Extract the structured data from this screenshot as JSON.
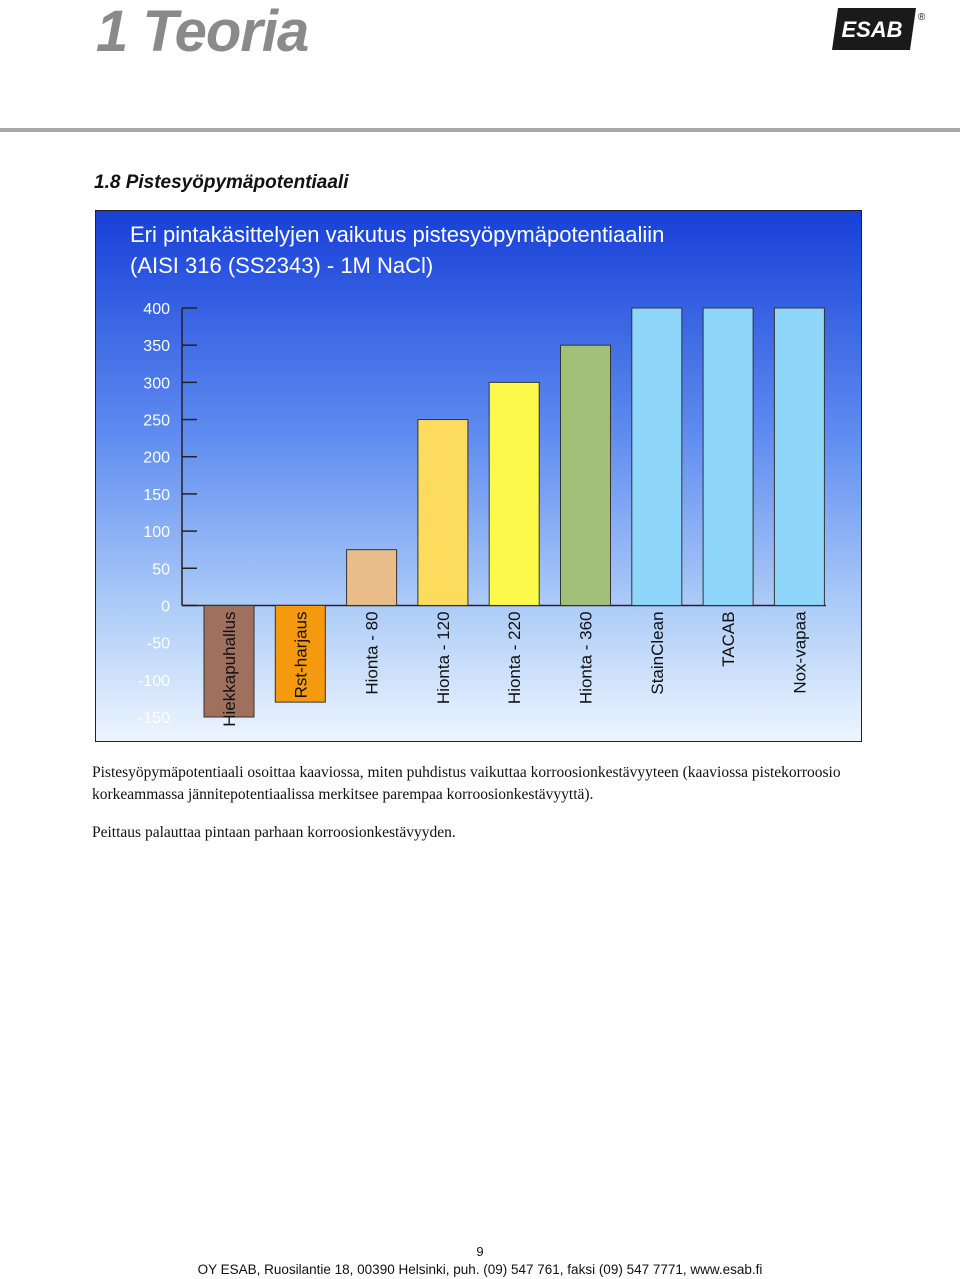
{
  "header": {
    "title": "1 Teoria",
    "logo_text": "ESAB",
    "logo_mark": "®"
  },
  "section": {
    "title": "1.8  Pistesyöpymäpotentiaali"
  },
  "chart_data": {
    "type": "bar",
    "title_line1": "Eri pintakäsittelyjen vaikutus pistesyöpymäpotentiaaliin",
    "title_line2": "(AISI 316 (SS2343) - 1M NaCl)",
    "xlabel": "",
    "ylabel": "",
    "ylim": [
      -150,
      400
    ],
    "yticks": [
      400,
      350,
      300,
      250,
      200,
      150,
      100,
      50,
      0,
      -50,
      -100,
      -150
    ],
    "grid": false,
    "categories": [
      "Hiekkapuhallus",
      "Rst-harjaus",
      "Hionta - 80",
      "Hionta - 120",
      "Hionta - 220",
      "Hionta - 360",
      "StainClean",
      "TACAB",
      "Nox-vapaa"
    ],
    "values": [
      -150,
      -130,
      75,
      250,
      300,
      350,
      400,
      400,
      400
    ],
    "colors": [
      "#a0705e",
      "#f59a0f",
      "#e8bd8a",
      "#fddb5c",
      "#fcf94a",
      "#a2c07a",
      "#8fd6fb",
      "#8fd6fb",
      "#8fd6fb"
    ],
    "background_top": "#1740d8",
    "background_bottom": "#ffffff"
  },
  "paragraphs": [
    "Pistesyöpymäpotentiaali osoittaa kaaviossa, miten puhdistus vaikuttaa korroosionkestävyyteen (kaaviossa pistekorroosio korkeammassa jännitepotentiaalissa merkitsee parempaa korroosionkestävyyttä).",
    "Peittaus palauttaa pintaan parhaan korroosionkestävyyden."
  ],
  "footer": {
    "page_number": "9",
    "text": "OY ESAB, Ruosilantie 18, 00390 Helsinki, puh. (09) 547 761, faksi (09) 547 7771, www.esab.fi"
  }
}
